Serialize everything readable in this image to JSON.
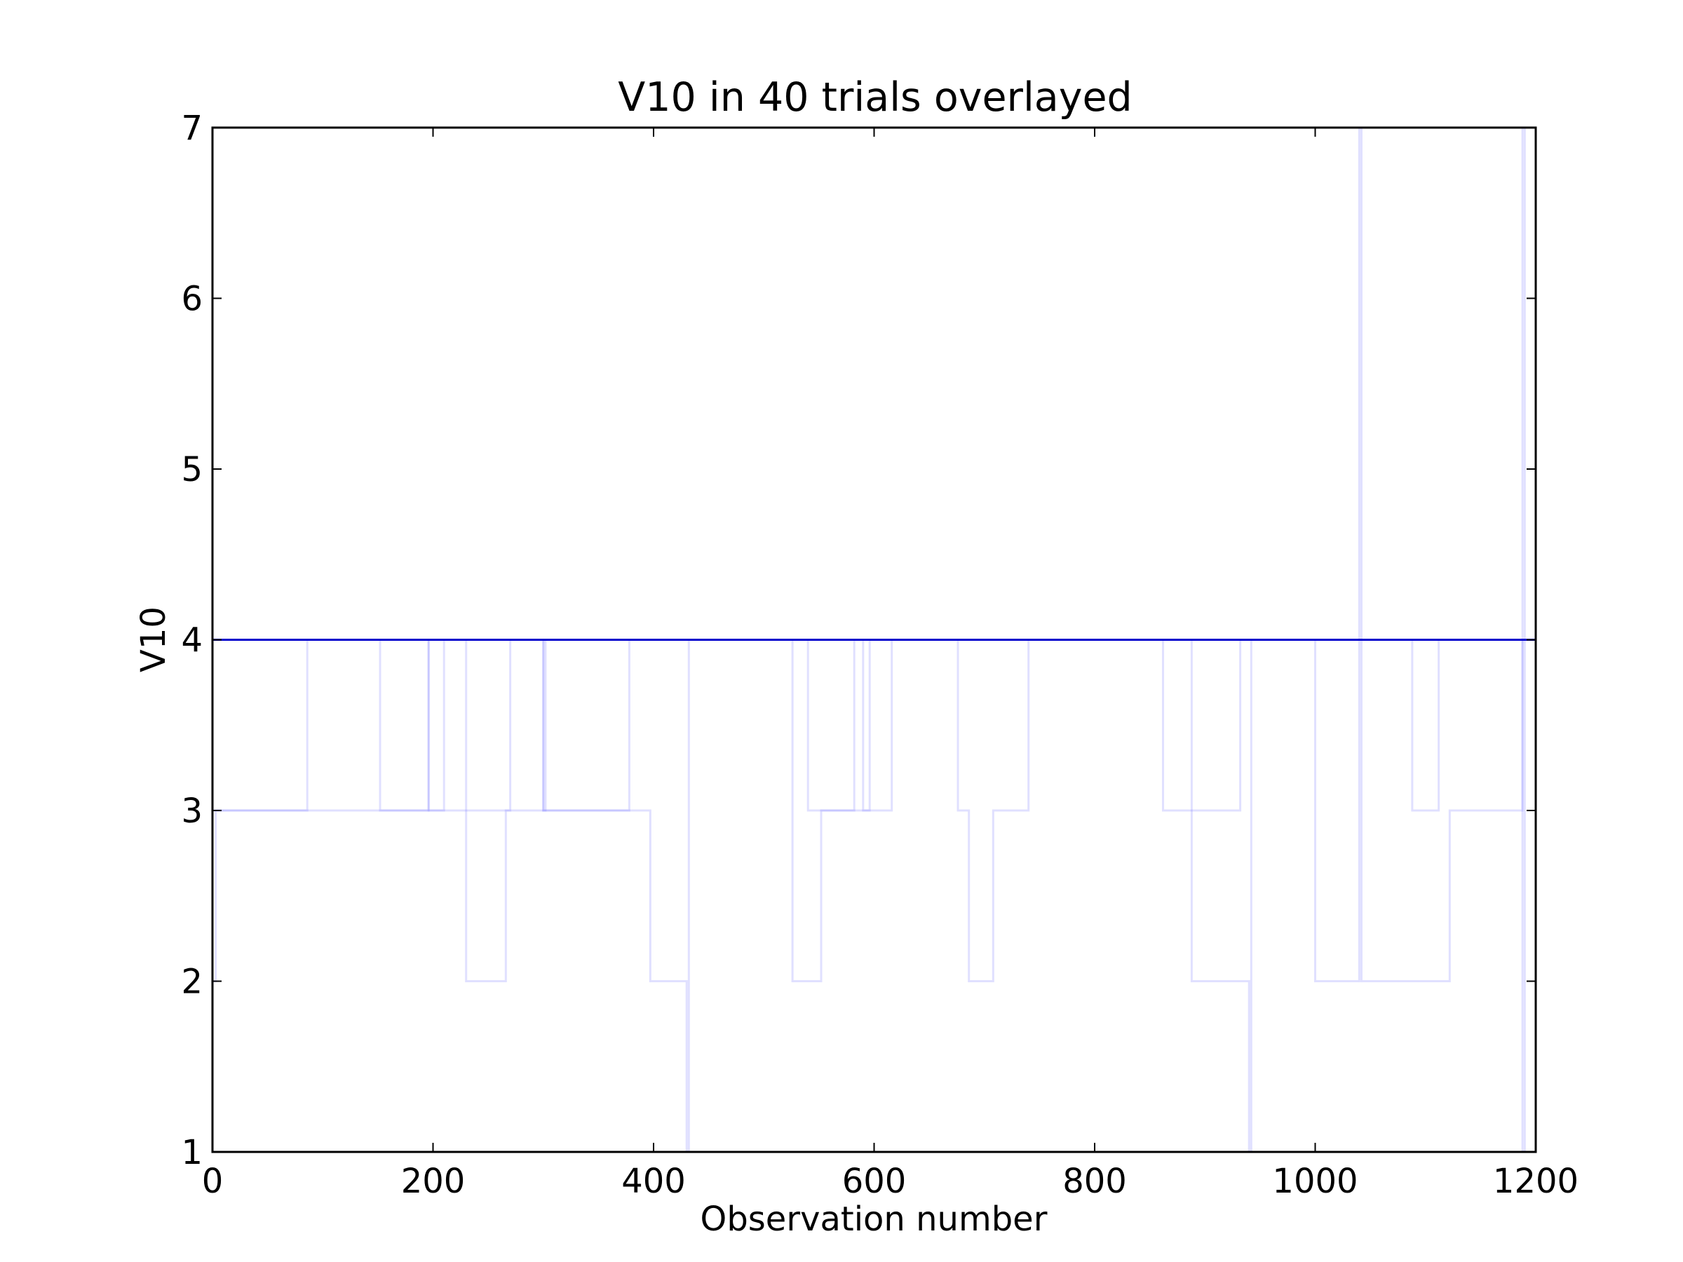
{
  "chart_data": {
    "type": "line",
    "title": "V10 in 40 trials overlayed",
    "xlabel": "Observation number",
    "ylabel": "V10",
    "xlim": [
      0,
      1200
    ],
    "ylim": [
      1,
      7
    ],
    "x_ticks": [
      0,
      200,
      400,
      600,
      800,
      1000,
      1200
    ],
    "y_ticks": [
      1,
      2,
      3,
      4,
      5,
      6,
      7
    ],
    "grid": false,
    "legend": "none",
    "colors": {
      "main_series": "#0000cc",
      "trial_series": "#6666ff",
      "axes": "#000000"
    },
    "main_level": 4,
    "trials": [
      {
        "points": [
          [
            0,
            4
          ],
          [
            0,
            3
          ],
          [
            86,
            3
          ],
          [
            86,
            4
          ],
          [
            152,
            4
          ],
          [
            152,
            3
          ],
          [
            196,
            3
          ],
          [
            196,
            4
          ],
          [
            1200,
            4
          ]
        ]
      },
      {
        "points": [
          [
            0,
            4
          ],
          [
            0,
            2
          ],
          [
            3,
            2
          ],
          [
            3,
            3
          ],
          [
            270,
            3
          ],
          [
            270,
            4
          ],
          [
            1200,
            4
          ]
        ]
      },
      {
        "points": [
          [
            0,
            4
          ],
          [
            196,
            4
          ],
          [
            196,
            3
          ],
          [
            210,
            3
          ],
          [
            210,
            4
          ],
          [
            1200,
            4
          ]
        ]
      },
      {
        "points": [
          [
            0,
            4
          ],
          [
            300,
            4
          ],
          [
            300,
            3
          ],
          [
            378,
            3
          ],
          [
            378,
            4
          ],
          [
            1200,
            4
          ]
        ]
      },
      {
        "points": [
          [
            0,
            4
          ],
          [
            230,
            4
          ],
          [
            230,
            2
          ],
          [
            266,
            2
          ],
          [
            266,
            3
          ],
          [
            302,
            3
          ],
          [
            302,
            4
          ],
          [
            1200,
            4
          ]
        ]
      },
      {
        "points": [
          [
            0,
            4
          ],
          [
            300,
            4
          ],
          [
            300,
            3
          ],
          [
            397,
            3
          ],
          [
            397,
            2
          ],
          [
            430,
            2
          ],
          [
            430,
            1
          ],
          [
            432,
            1
          ],
          [
            432,
            4
          ],
          [
            1200,
            4
          ]
        ]
      },
      {
        "points": [
          [
            0,
            4
          ],
          [
            540,
            4
          ],
          [
            540,
            3
          ],
          [
            582,
            3
          ],
          [
            582,
            4
          ],
          [
            1200,
            4
          ]
        ]
      },
      {
        "points": [
          [
            0,
            4
          ],
          [
            526,
            4
          ],
          [
            526,
            2
          ],
          [
            552,
            2
          ],
          [
            552,
            3
          ],
          [
            596,
            3
          ],
          [
            596,
            4
          ],
          [
            1200,
            4
          ]
        ]
      },
      {
        "points": [
          [
            0,
            4
          ],
          [
            590,
            4
          ],
          [
            590,
            3
          ],
          [
            616,
            3
          ],
          [
            616,
            4
          ],
          [
            1200,
            4
          ]
        ]
      },
      {
        "points": [
          [
            0,
            4
          ],
          [
            676,
            4
          ],
          [
            676,
            3
          ],
          [
            686,
            3
          ],
          [
            686,
            2
          ],
          [
            708,
            2
          ],
          [
            708,
            3
          ],
          [
            740,
            3
          ],
          [
            740,
            4
          ],
          [
            1200,
            4
          ]
        ]
      },
      {
        "points": [
          [
            0,
            4
          ],
          [
            862,
            4
          ],
          [
            862,
            3
          ],
          [
            932,
            3
          ],
          [
            932,
            4
          ],
          [
            1200,
            4
          ]
        ]
      },
      {
        "points": [
          [
            0,
            4
          ],
          [
            888,
            4
          ],
          [
            888,
            2
          ],
          [
            940,
            2
          ],
          [
            940,
            1
          ],
          [
            942,
            1
          ],
          [
            942,
            4
          ],
          [
            1200,
            4
          ]
        ]
      },
      {
        "points": [
          [
            0,
            4
          ],
          [
            1000,
            4
          ],
          [
            1000,
            2
          ],
          [
            1040,
            2
          ],
          [
            1040,
            7
          ],
          [
            1042,
            7
          ],
          [
            1042,
            2
          ],
          [
            1122,
            2
          ],
          [
            1122,
            3
          ],
          [
            1188,
            3
          ],
          [
            1188,
            7
          ],
          [
            1190,
            7
          ],
          [
            1190,
            4
          ],
          [
            1200,
            4
          ]
        ]
      },
      {
        "points": [
          [
            0,
            4
          ],
          [
            1088,
            4
          ],
          [
            1088,
            3
          ],
          [
            1112,
            3
          ],
          [
            1112,
            4
          ],
          [
            1200,
            4
          ]
        ]
      },
      {
        "points": [
          [
            0,
            4
          ],
          [
            1188,
            4
          ],
          [
            1188,
            1
          ],
          [
            1190,
            1
          ],
          [
            1190,
            4
          ],
          [
            1200,
            4
          ]
        ]
      }
    ]
  }
}
